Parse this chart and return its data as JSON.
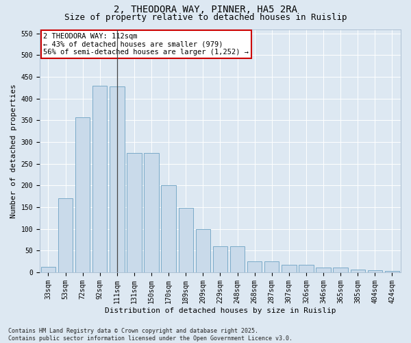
{
  "title1": "2, THEODORA WAY, PINNER, HA5 2RA",
  "title2": "Size of property relative to detached houses in Ruislip",
  "xlabel": "Distribution of detached houses by size in Ruislip",
  "ylabel": "Number of detached properties",
  "categories": [
    "33sqm",
    "53sqm",
    "72sqm",
    "92sqm",
    "111sqm",
    "131sqm",
    "150sqm",
    "170sqm",
    "189sqm",
    "209sqm",
    "229sqm",
    "248sqm",
    "268sqm",
    "287sqm",
    "307sqm",
    "326sqm",
    "346sqm",
    "365sqm",
    "385sqm",
    "404sqm",
    "424sqm"
  ],
  "bar_heights": [
    12,
    170,
    357,
    430,
    428,
    275,
    275,
    200,
    148,
    99,
    60,
    60,
    25,
    25,
    17,
    17,
    11,
    11,
    6,
    5,
    3
  ],
  "bar_color": "#c9daea",
  "bar_edge_color": "#7aaac8",
  "vline_index": 4,
  "annotation_text": "2 THEODORA WAY: 112sqm\n← 43% of detached houses are smaller (979)\n56% of semi-detached houses are larger (1,252) →",
  "annotation_box_facecolor": "#ffffff",
  "annotation_box_edgecolor": "#cc0000",
  "bg_color": "#dde8f2",
  "grid_color": "#ffffff",
  "ylim_max": 560,
  "yticks": [
    0,
    50,
    100,
    150,
    200,
    250,
    300,
    350,
    400,
    450,
    500,
    550
  ],
  "footnote": "Contains HM Land Registry data © Crown copyright and database right 2025.\nContains public sector information licensed under the Open Government Licence v3.0.",
  "title_fontsize": 10,
  "subtitle_fontsize": 9,
  "axis_label_fontsize": 8,
  "tick_fontsize": 7,
  "annotation_fontsize": 7.5,
  "footnote_fontsize": 6
}
